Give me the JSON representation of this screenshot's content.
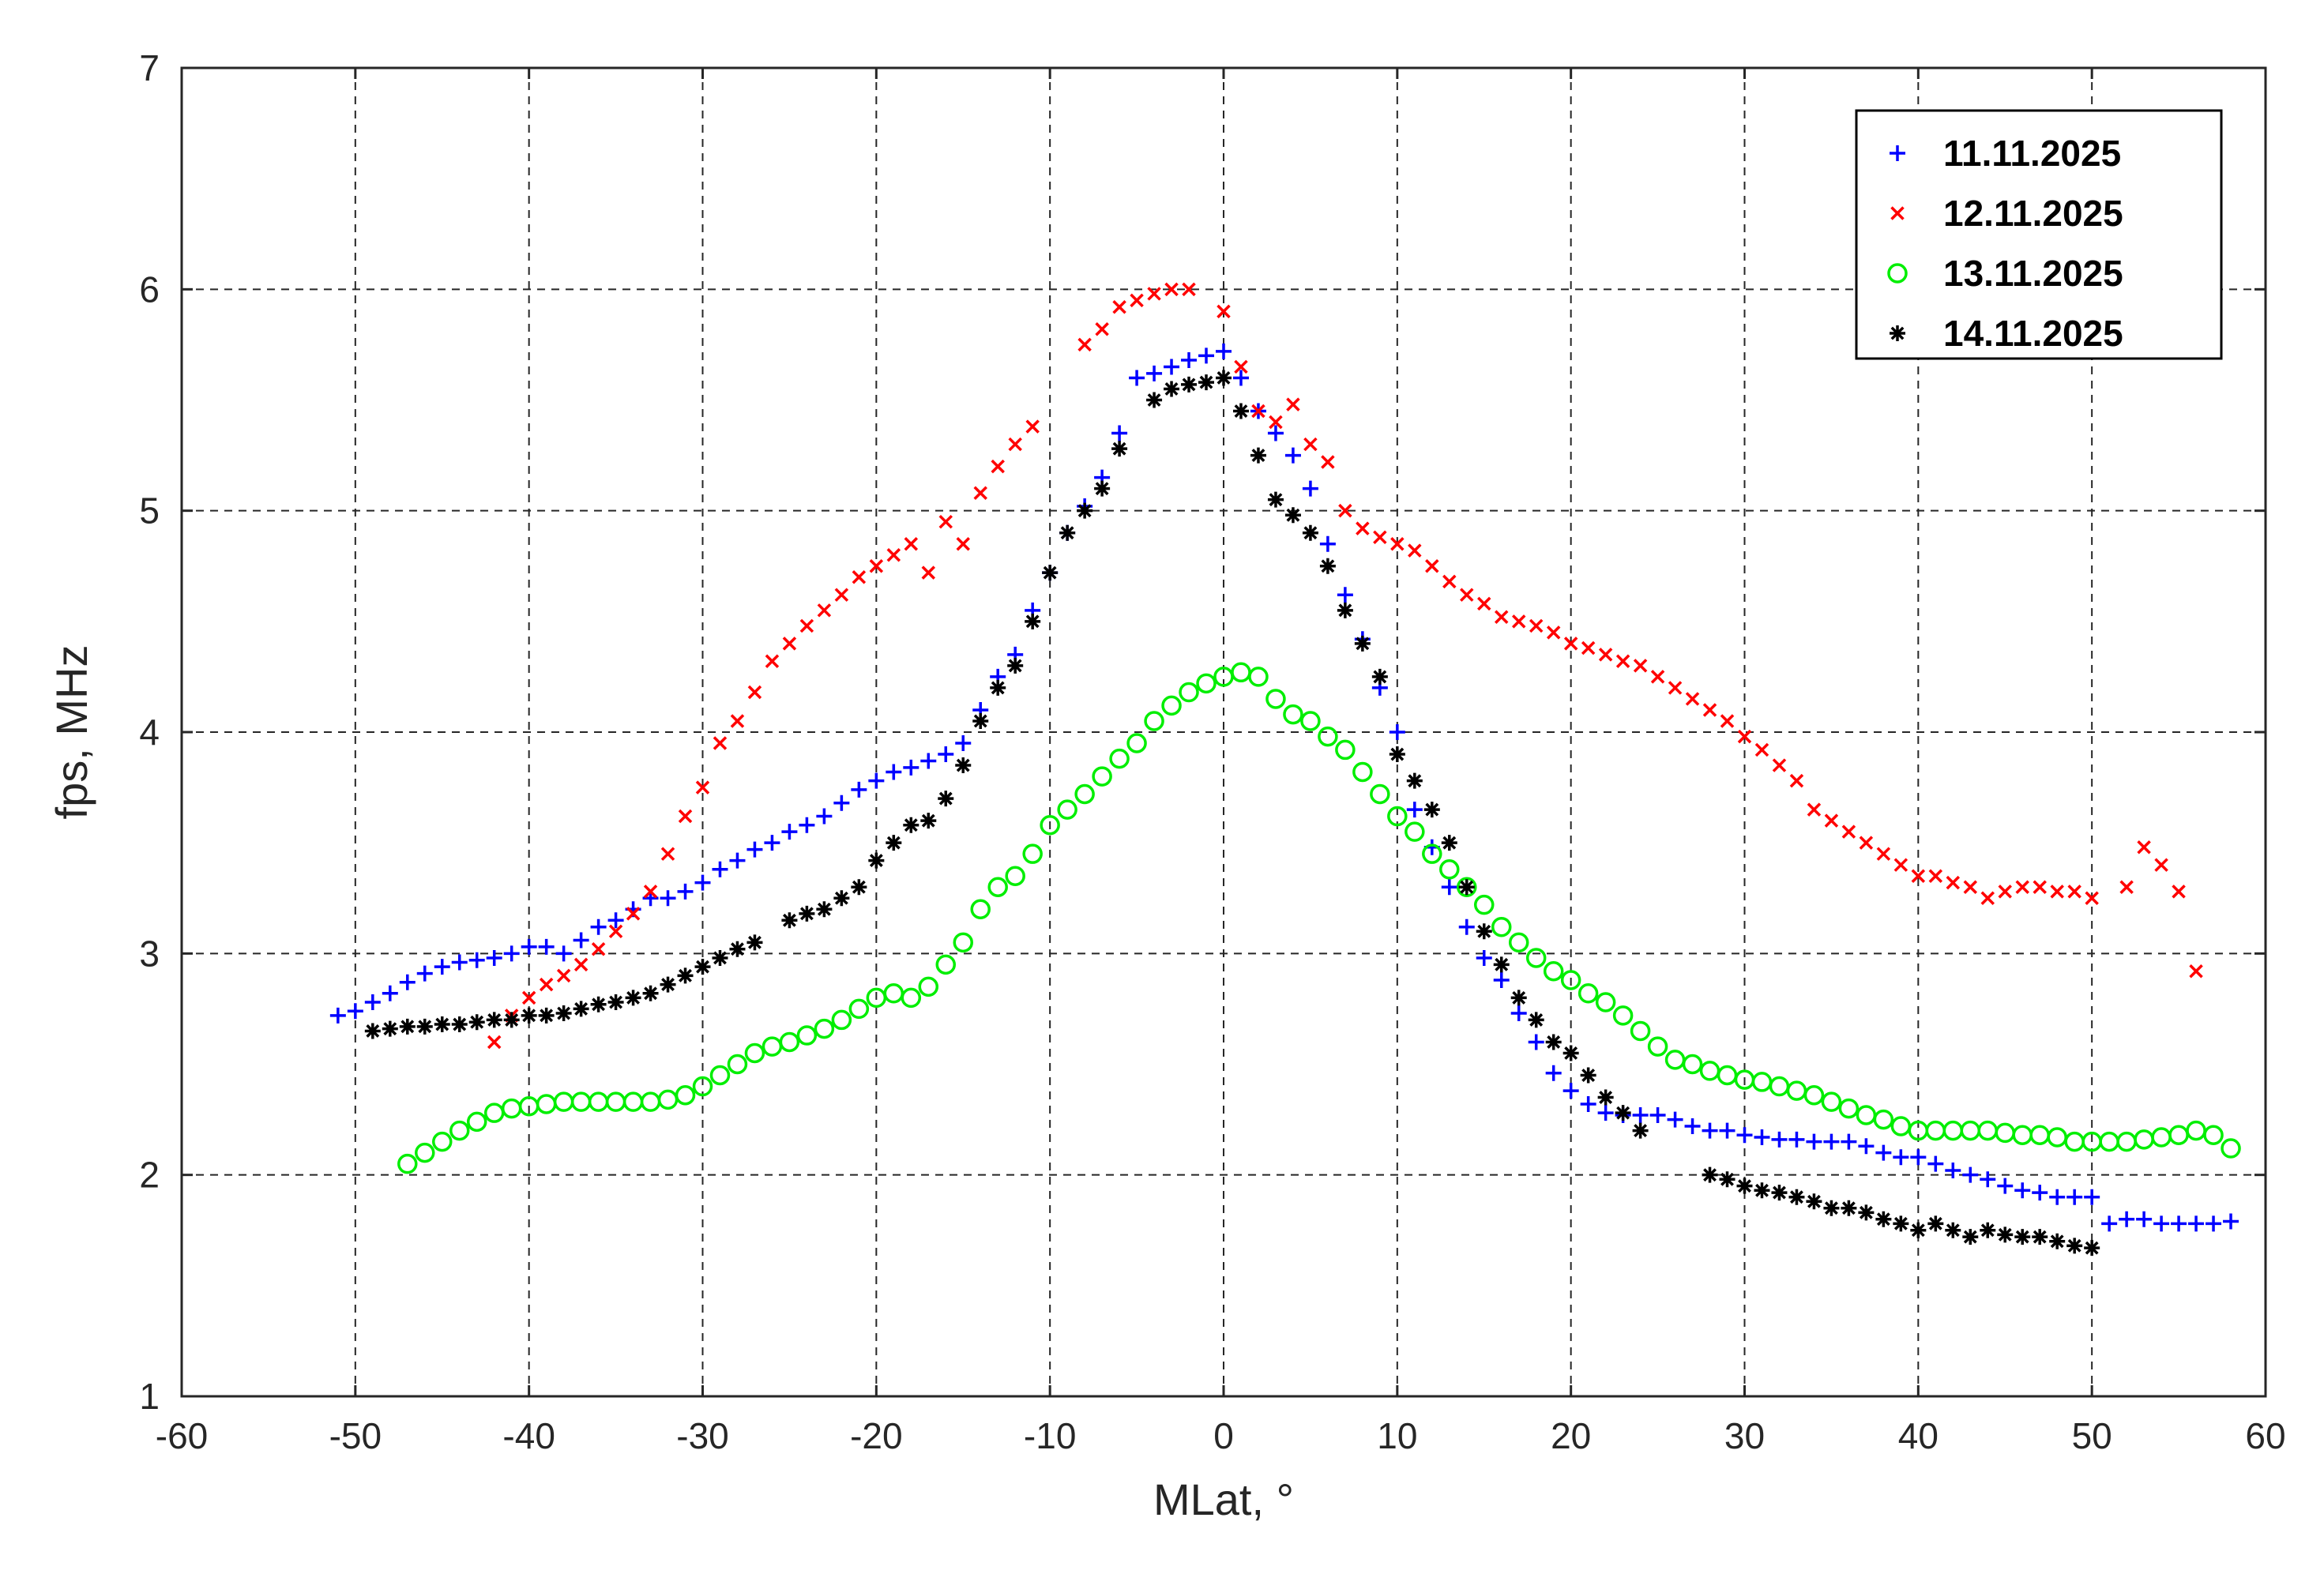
{
  "chart_data": {
    "type": "scatter",
    "title": "",
    "xlabel": "MLat, °",
    "ylabel": "fps, MHz",
    "xlim": [
      -60,
      60
    ],
    "ylim": [
      1,
      7
    ],
    "xticks": [
      -60,
      -50,
      -40,
      -30,
      -20,
      -10,
      0,
      10,
      20,
      30,
      40,
      50,
      60
    ],
    "yticks": [
      1,
      2,
      3,
      4,
      5,
      6,
      7
    ],
    "xtick_labels": [
      "-60",
      "-50",
      "-40",
      "-30",
      "-20",
      "-10",
      "0",
      "10",
      "20",
      "30",
      "40",
      "50",
      "60"
    ],
    "ytick_labels": [
      "1",
      "2",
      "3",
      "4",
      "5",
      "6",
      "7"
    ],
    "grid": true,
    "legend_position": "top-right",
    "series": [
      {
        "name": "11.11.2025",
        "marker": "plus",
        "color": "#0000ff",
        "x": [
          -51,
          -50,
          -49,
          -48,
          -47,
          -46,
          -45,
          -44,
          -43,
          -42,
          -41,
          -40,
          -39,
          -38,
          -37,
          -36,
          -35,
          -34,
          -33,
          -32,
          -31,
          -30,
          -29,
          -28,
          -27,
          -26,
          -25,
          -24,
          -23,
          -22,
          -21,
          -20,
          -19,
          -18,
          -17,
          -16,
          -15,
          -14,
          -13,
          -12,
          -11,
          -10,
          -9,
          -8,
          -7,
          -6,
          -5,
          -4,
          -3,
          -2,
          -1,
          0,
          1,
          2,
          3,
          4,
          5,
          6,
          7,
          8,
          9,
          10,
          11,
          12,
          13,
          14,
          15,
          16,
          17,
          18,
          19,
          20,
          21,
          22,
          23,
          24,
          25,
          26,
          27,
          28,
          29,
          30,
          31,
          32,
          33,
          34,
          35,
          36,
          37,
          38,
          39,
          40,
          41,
          42,
          43,
          44,
          45,
          46,
          47,
          48,
          49,
          50,
          51,
          52,
          53,
          54,
          55,
          56,
          57,
          58
        ],
        "y": [
          2.72,
          2.74,
          2.78,
          2.82,
          2.87,
          2.91,
          2.94,
          2.96,
          2.97,
          2.98,
          3.0,
          3.03,
          3.03,
          3.0,
          3.06,
          3.12,
          3.15,
          3.2,
          3.25,
          3.25,
          3.28,
          3.32,
          3.38,
          3.42,
          3.47,
          3.5,
          3.55,
          3.58,
          3.62,
          3.68,
          3.74,
          3.78,
          3.82,
          3.84,
          3.87,
          3.9,
          3.95,
          4.1,
          4.25,
          4.35,
          4.55,
          4.72,
          4.9,
          5.02,
          5.15,
          5.35,
          5.6,
          5.62,
          5.65,
          5.68,
          5.7,
          5.72,
          5.6,
          5.45,
          5.35,
          5.25,
          5.1,
          4.85,
          4.62,
          4.42,
          4.2,
          4.0,
          3.65,
          3.48,
          3.3,
          3.12,
          2.98,
          2.88,
          2.73,
          2.6,
          2.46,
          2.38,
          2.32,
          2.28,
          2.27,
          2.27,
          2.27,
          2.25,
          2.22,
          2.2,
          2.2,
          2.18,
          2.17,
          2.16,
          2.16,
          2.15,
          2.15,
          2.15,
          2.13,
          2.1,
          2.08,
          2.08,
          2.05,
          2.02,
          2.0,
          1.98,
          1.95,
          1.93,
          1.92,
          1.9,
          1.9,
          1.9,
          1.78,
          1.8,
          1.8,
          1.78,
          1.78,
          1.78,
          1.78,
          1.79
        ]
      },
      {
        "name": "12.11.2025",
        "marker": "cross",
        "color": "#ff0000",
        "x": [
          -42,
          -41,
          -40,
          -39,
          -38,
          -37,
          -36,
          -35,
          -34,
          -33,
          -32,
          -31,
          -30,
          -29,
          -28,
          -27,
          -26,
          -25,
          -24,
          -23,
          -22,
          -21,
          -20,
          -19,
          -18,
          -17,
          -16,
          -15,
          -14,
          -13,
          -12,
          -11,
          -8,
          -7,
          -6,
          -5,
          -4,
          -3,
          -2,
          0,
          1,
          2,
          3,
          4,
          5,
          6,
          7,
          8,
          9,
          10,
          11,
          12,
          13,
          14,
          15,
          16,
          17,
          18,
          19,
          20,
          21,
          22,
          23,
          24,
          25,
          26,
          27,
          28,
          29,
          30,
          31,
          32,
          33,
          34,
          35,
          36,
          37,
          38,
          39,
          40,
          41,
          42,
          43,
          44,
          45,
          46,
          47,
          48,
          49,
          50,
          52,
          53,
          54,
          55,
          56
        ],
        "y": [
          2.6,
          2.72,
          2.8,
          2.86,
          2.9,
          2.95,
          3.02,
          3.1,
          3.18,
          3.28,
          3.45,
          3.62,
          3.75,
          3.95,
          4.05,
          4.18,
          4.32,
          4.4,
          4.48,
          4.55,
          4.62,
          4.7,
          4.75,
          4.8,
          4.85,
          4.72,
          4.95,
          4.85,
          5.08,
          5.2,
          5.3,
          5.38,
          5.75,
          5.82,
          5.92,
          5.95,
          5.98,
          6.0,
          6.0,
          5.9,
          5.65,
          5.45,
          5.4,
          5.48,
          5.3,
          5.22,
          5.0,
          4.92,
          4.88,
          4.85,
          4.82,
          4.75,
          4.68,
          4.62,
          4.58,
          4.52,
          4.5,
          4.48,
          4.45,
          4.4,
          4.38,
          4.35,
          4.32,
          4.3,
          4.25,
          4.2,
          4.15,
          4.1,
          4.05,
          3.98,
          3.92,
          3.85,
          3.78,
          3.65,
          3.6,
          3.55,
          3.5,
          3.45,
          3.4,
          3.35,
          3.35,
          3.32,
          3.3,
          3.25,
          3.28,
          3.3,
          3.3,
          3.28,
          3.28,
          3.25,
          3.3,
          3.48,
          3.4,
          3.28,
          2.92
        ]
      },
      {
        "name": "13.11.2025",
        "marker": "circle",
        "color": "#00ee00",
        "x": [
          -47,
          -46,
          -45,
          -44,
          -43,
          -42,
          -41,
          -40,
          -39,
          -38,
          -37,
          -36,
          -35,
          -34,
          -33,
          -32,
          -31,
          -30,
          -29,
          -28,
          -27,
          -26,
          -25,
          -24,
          -23,
          -22,
          -21,
          -20,
          -19,
          -18,
          -17,
          -16,
          -15,
          -14,
          -13,
          -12,
          -11,
          -10,
          -9,
          -8,
          -7,
          -6,
          -5,
          -4,
          -3,
          -2,
          -1,
          0,
          1,
          2,
          3,
          4,
          5,
          6,
          7,
          8,
          9,
          10,
          11,
          12,
          13,
          14,
          15,
          16,
          17,
          18,
          19,
          20,
          21,
          22,
          23,
          24,
          25,
          26,
          27,
          28,
          29,
          30,
          31,
          32,
          33,
          34,
          35,
          36,
          37,
          38,
          39,
          40,
          41,
          42,
          43,
          44,
          45,
          46,
          47,
          48,
          49,
          50,
          51,
          52,
          53,
          54,
          55,
          56,
          57,
          58
        ],
        "y": [
          2.05,
          2.1,
          2.15,
          2.2,
          2.24,
          2.28,
          2.3,
          2.31,
          2.32,
          2.33,
          2.33,
          2.33,
          2.33,
          2.33,
          2.33,
          2.34,
          2.36,
          2.4,
          2.45,
          2.5,
          2.55,
          2.58,
          2.6,
          2.63,
          2.66,
          2.7,
          2.75,
          2.8,
          2.82,
          2.8,
          2.85,
          2.95,
          3.05,
          3.2,
          3.3,
          3.35,
          3.45,
          3.58,
          3.65,
          3.72,
          3.8,
          3.88,
          3.95,
          4.05,
          4.12,
          4.18,
          4.22,
          4.25,
          4.27,
          4.25,
          4.15,
          4.08,
          4.05,
          3.98,
          3.92,
          3.82,
          3.72,
          3.62,
          3.55,
          3.45,
          3.38,
          3.3,
          3.22,
          3.12,
          3.05,
          2.98,
          2.92,
          2.88,
          2.82,
          2.78,
          2.72,
          2.65,
          2.58,
          2.52,
          2.5,
          2.47,
          2.45,
          2.43,
          2.42,
          2.4,
          2.38,
          2.36,
          2.33,
          2.3,
          2.27,
          2.25,
          2.22,
          2.2,
          2.2,
          2.2,
          2.2,
          2.2,
          2.19,
          2.18,
          2.18,
          2.17,
          2.15,
          2.15,
          2.15,
          2.15,
          2.16,
          2.17,
          2.18,
          2.2,
          2.18,
          2.12
        ]
      },
      {
        "name": "14.11.2025",
        "marker": "asterisk",
        "color": "#000000",
        "x": [
          -49,
          -48,
          -47,
          -46,
          -45,
          -44,
          -43,
          -42,
          -41,
          -40,
          -39,
          -38,
          -37,
          -36,
          -35,
          -34,
          -33,
          -32,
          -31,
          -30,
          -29,
          -28,
          -27,
          -25,
          -24,
          -23,
          -22,
          -21,
          -20,
          -19,
          -18,
          -17,
          -16,
          -15,
          -14,
          -13,
          -12,
          -11,
          -10,
          -9,
          -8,
          -7,
          -6,
          -4,
          -3,
          -2,
          -1,
          0,
          1,
          2,
          3,
          4,
          5,
          6,
          7,
          8,
          9,
          10,
          11,
          12,
          13,
          14,
          15,
          16,
          17,
          18,
          19,
          20,
          21,
          22,
          23,
          24,
          28,
          29,
          30,
          31,
          32,
          33,
          34,
          35,
          36,
          37,
          38,
          39,
          40,
          41,
          42,
          43,
          44,
          45,
          46,
          47,
          48,
          49,
          50
        ],
        "y": [
          2.65,
          2.66,
          2.67,
          2.67,
          2.68,
          2.68,
          2.69,
          2.7,
          2.7,
          2.72,
          2.72,
          2.73,
          2.75,
          2.77,
          2.78,
          2.8,
          2.82,
          2.86,
          2.9,
          2.94,
          2.98,
          3.02,
          3.05,
          3.15,
          3.18,
          3.2,
          3.25,
          3.3,
          3.42,
          3.5,
          3.58,
          3.6,
          3.7,
          3.85,
          4.05,
          4.2,
          4.3,
          4.5,
          4.72,
          4.9,
          5.0,
          5.1,
          5.28,
          5.5,
          5.55,
          5.57,
          5.58,
          5.6,
          5.45,
          5.25,
          5.05,
          4.98,
          4.9,
          4.75,
          4.55,
          4.4,
          4.25,
          3.9,
          3.78,
          3.65,
          3.5,
          3.3,
          3.1,
          2.95,
          2.8,
          2.7,
          2.6,
          2.55,
          2.45,
          2.35,
          2.28,
          2.2,
          2.0,
          1.98,
          1.95,
          1.93,
          1.92,
          1.9,
          1.88,
          1.85,
          1.85,
          1.83,
          1.8,
          1.78,
          1.75,
          1.78,
          1.75,
          1.72,
          1.75,
          1.73,
          1.72,
          1.72,
          1.7,
          1.68,
          1.67
        ]
      }
    ]
  }
}
